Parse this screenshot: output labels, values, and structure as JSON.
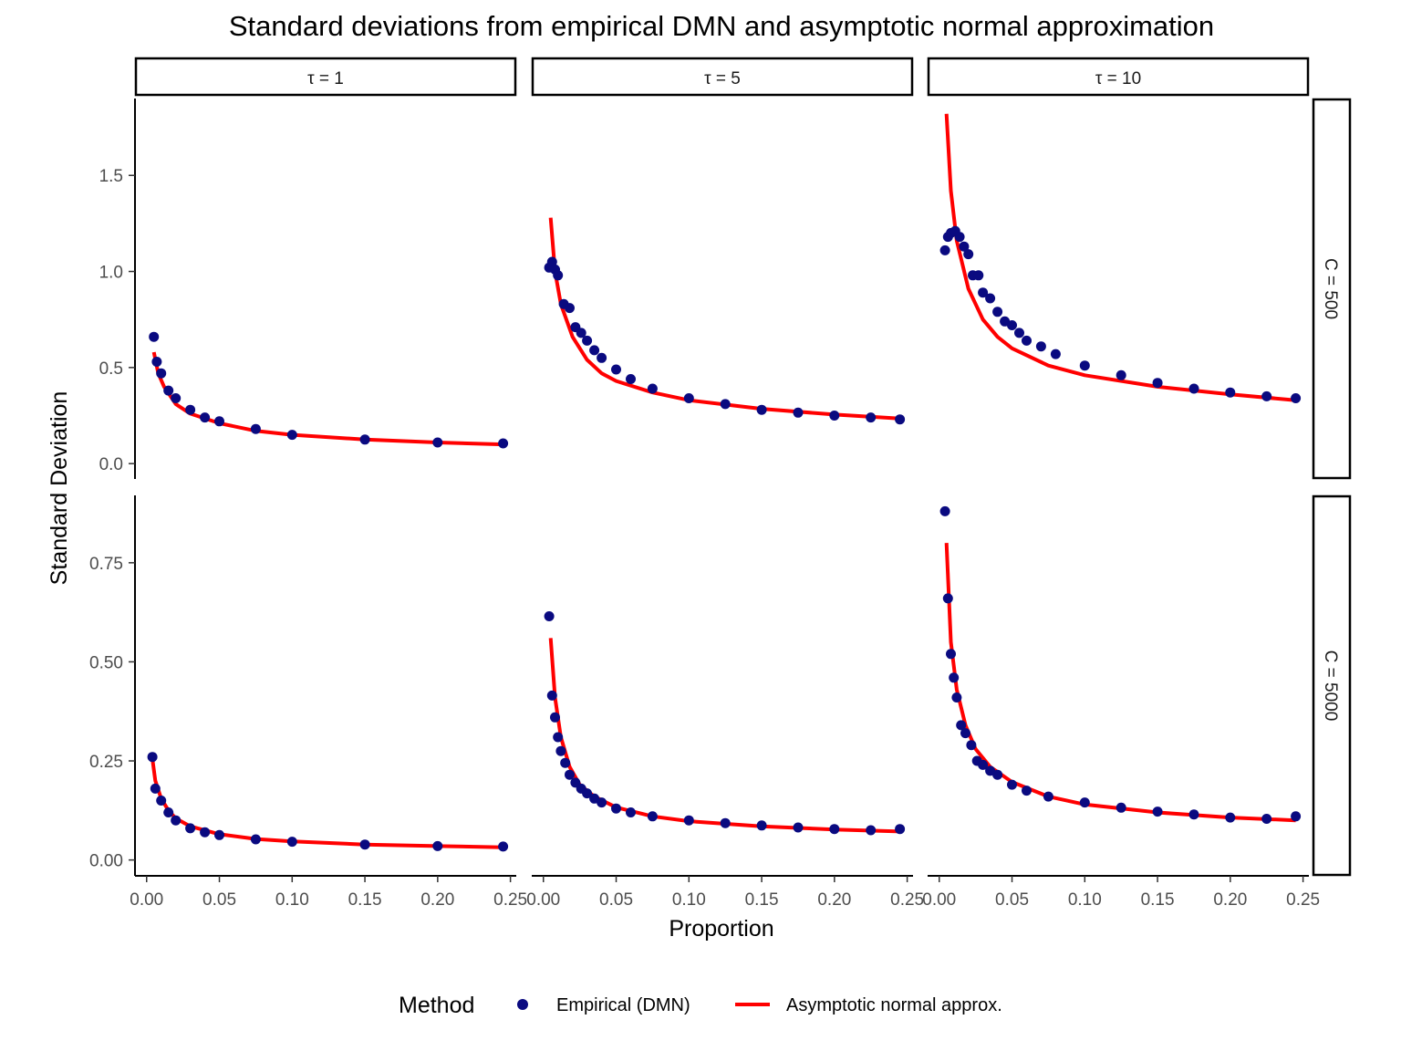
{
  "chart_data": {
    "type": "scatter",
    "title": "Standard deviations from empirical DMN and asymptotic normal approximation",
    "xlabel": "Proportion",
    "ylabel": "Standard Deviation",
    "columns": [
      "τ = 1",
      "τ = 5",
      "τ = 10"
    ],
    "rows": [
      "C = 500",
      "C = 5000"
    ],
    "xlim": [
      -0.008,
      0.254
    ],
    "x_ticks": [
      0.0,
      0.05,
      0.1,
      0.15,
      0.2,
      0.25
    ],
    "x_tick_labels": [
      "0.00",
      "0.05",
      "0.10",
      "0.15",
      "0.20",
      "0.25"
    ],
    "rows_axes": [
      {
        "ylim": [
          -0.08,
          1.9
        ],
        "ticks": [
          0.0,
          0.5,
          1.0,
          1.5
        ],
        "tick_labels": [
          "0.0",
          "0.5",
          "1.0",
          "1.5"
        ]
      },
      {
        "ylim": [
          -0.04,
          0.92
        ],
        "ticks": [
          0.0,
          0.25,
          0.5,
          0.75
        ],
        "tick_labels": [
          "0.00",
          "0.25",
          "0.50",
          "0.75"
        ]
      }
    ],
    "legend": {
      "title": "Method",
      "position": "bottom",
      "items": [
        {
          "label": "Empirical (DMN)",
          "kind": "point",
          "color": "#0a0a80"
        },
        {
          "label": "Asymptotic normal approx.",
          "kind": "line",
          "color": "#ff0000"
        }
      ]
    },
    "panels": [
      {
        "row": 0,
        "col": 0,
        "empirical": [
          [
            0.005,
            0.66
          ],
          [
            0.007,
            0.53
          ],
          [
            0.01,
            0.47
          ],
          [
            0.015,
            0.38
          ],
          [
            0.02,
            0.34
          ],
          [
            0.03,
            0.28
          ],
          [
            0.04,
            0.24
          ],
          [
            0.05,
            0.22
          ],
          [
            0.075,
            0.18
          ],
          [
            0.1,
            0.15
          ],
          [
            0.15,
            0.125
          ],
          [
            0.2,
            0.11
          ],
          [
            0.245,
            0.105
          ]
        ],
        "approx": [
          [
            0.005,
            0.58
          ],
          [
            0.008,
            0.47
          ],
          [
            0.012,
            0.4
          ],
          [
            0.02,
            0.31
          ],
          [
            0.03,
            0.26
          ],
          [
            0.05,
            0.21
          ],
          [
            0.075,
            0.17
          ],
          [
            0.1,
            0.15
          ],
          [
            0.15,
            0.125
          ],
          [
            0.2,
            0.11
          ],
          [
            0.245,
            0.1
          ]
        ]
      },
      {
        "row": 0,
        "col": 1,
        "empirical": [
          [
            0.004,
            1.02
          ],
          [
            0.006,
            1.05
          ],
          [
            0.008,
            1.01
          ],
          [
            0.01,
            0.98
          ],
          [
            0.014,
            0.83
          ],
          [
            0.018,
            0.81
          ],
          [
            0.022,
            0.71
          ],
          [
            0.026,
            0.68
          ],
          [
            0.03,
            0.64
          ],
          [
            0.035,
            0.59
          ],
          [
            0.04,
            0.55
          ],
          [
            0.05,
            0.49
          ],
          [
            0.06,
            0.44
          ],
          [
            0.075,
            0.39
          ],
          [
            0.1,
            0.34
          ],
          [
            0.125,
            0.31
          ],
          [
            0.15,
            0.28
          ],
          [
            0.175,
            0.265
          ],
          [
            0.2,
            0.25
          ],
          [
            0.225,
            0.24
          ],
          [
            0.245,
            0.23
          ]
        ],
        "approx": [
          [
            0.005,
            1.28
          ],
          [
            0.008,
            1.0
          ],
          [
            0.012,
            0.83
          ],
          [
            0.02,
            0.66
          ],
          [
            0.03,
            0.54
          ],
          [
            0.04,
            0.47
          ],
          [
            0.05,
            0.43
          ],
          [
            0.075,
            0.37
          ],
          [
            0.1,
            0.33
          ],
          [
            0.15,
            0.285
          ],
          [
            0.2,
            0.255
          ],
          [
            0.245,
            0.235
          ]
        ]
      },
      {
        "row": 0,
        "col": 2,
        "empirical": [
          [
            0.004,
            1.11
          ],
          [
            0.006,
            1.18
          ],
          [
            0.008,
            1.2
          ],
          [
            0.011,
            1.21
          ],
          [
            0.014,
            1.18
          ],
          [
            0.017,
            1.13
          ],
          [
            0.02,
            1.09
          ],
          [
            0.023,
            0.98
          ],
          [
            0.027,
            0.98
          ],
          [
            0.03,
            0.89
          ],
          [
            0.035,
            0.86
          ],
          [
            0.04,
            0.79
          ],
          [
            0.045,
            0.74
          ],
          [
            0.05,
            0.72
          ],
          [
            0.055,
            0.68
          ],
          [
            0.06,
            0.64
          ],
          [
            0.07,
            0.61
          ],
          [
            0.08,
            0.57
          ],
          [
            0.1,
            0.51
          ],
          [
            0.125,
            0.46
          ],
          [
            0.15,
            0.42
          ],
          [
            0.175,
            0.39
          ],
          [
            0.2,
            0.37
          ],
          [
            0.225,
            0.35
          ],
          [
            0.245,
            0.34
          ]
        ],
        "approx": [
          [
            0.005,
            1.82
          ],
          [
            0.008,
            1.42
          ],
          [
            0.012,
            1.16
          ],
          [
            0.02,
            0.91
          ],
          [
            0.03,
            0.75
          ],
          [
            0.04,
            0.66
          ],
          [
            0.05,
            0.6
          ],
          [
            0.075,
            0.51
          ],
          [
            0.1,
            0.46
          ],
          [
            0.15,
            0.4
          ],
          [
            0.2,
            0.36
          ],
          [
            0.245,
            0.33
          ]
        ]
      },
      {
        "row": 1,
        "col": 0,
        "empirical": [
          [
            0.004,
            0.26
          ],
          [
            0.006,
            0.18
          ],
          [
            0.01,
            0.15
          ],
          [
            0.015,
            0.12
          ],
          [
            0.02,
            0.1
          ],
          [
            0.03,
            0.08
          ],
          [
            0.04,
            0.07
          ],
          [
            0.05,
            0.063
          ],
          [
            0.075,
            0.052
          ],
          [
            0.1,
            0.046
          ],
          [
            0.15,
            0.039
          ],
          [
            0.2,
            0.035
          ],
          [
            0.245,
            0.034
          ]
        ],
        "approx": [
          [
            0.004,
            0.255
          ],
          [
            0.006,
            0.2
          ],
          [
            0.01,
            0.155
          ],
          [
            0.015,
            0.125
          ],
          [
            0.02,
            0.105
          ],
          [
            0.03,
            0.085
          ],
          [
            0.05,
            0.065
          ],
          [
            0.075,
            0.053
          ],
          [
            0.1,
            0.047
          ],
          [
            0.15,
            0.039
          ],
          [
            0.2,
            0.035
          ],
          [
            0.245,
            0.032
          ]
        ]
      },
      {
        "row": 1,
        "col": 2,
        "empirical": [
          [
            0.004,
            0.88
          ],
          [
            0.006,
            0.66
          ],
          [
            0.008,
            0.52
          ],
          [
            0.01,
            0.46
          ],
          [
            0.012,
            0.41
          ],
          [
            0.015,
            0.34
          ],
          [
            0.018,
            0.32
          ],
          [
            0.022,
            0.29
          ],
          [
            0.026,
            0.25
          ],
          [
            0.03,
            0.24
          ],
          [
            0.035,
            0.225
          ],
          [
            0.04,
            0.215
          ],
          [
            0.05,
            0.19
          ],
          [
            0.06,
            0.175
          ],
          [
            0.075,
            0.16
          ],
          [
            0.1,
            0.145
          ],
          [
            0.125,
            0.132
          ],
          [
            0.15,
            0.122
          ],
          [
            0.175,
            0.115
          ],
          [
            0.2,
            0.107
          ],
          [
            0.225,
            0.104
          ],
          [
            0.245,
            0.11
          ]
        ],
        "approx": [
          [
            0.005,
            0.8
          ],
          [
            0.008,
            0.55
          ],
          [
            0.012,
            0.43
          ],
          [
            0.018,
            0.34
          ],
          [
            0.025,
            0.28
          ],
          [
            0.035,
            0.235
          ],
          [
            0.05,
            0.197
          ],
          [
            0.075,
            0.16
          ],
          [
            0.1,
            0.14
          ],
          [
            0.15,
            0.12
          ],
          [
            0.2,
            0.107
          ],
          [
            0.245,
            0.1
          ]
        ]
      },
      {
        "row": 1,
        "col": 1,
        "empirical": [
          [
            0.004,
            0.615
          ],
          [
            0.006,
            0.415
          ],
          [
            0.008,
            0.36
          ],
          [
            0.01,
            0.31
          ],
          [
            0.012,
            0.275
          ],
          [
            0.015,
            0.245
          ],
          [
            0.018,
            0.215
          ],
          [
            0.022,
            0.195
          ],
          [
            0.026,
            0.18
          ],
          [
            0.03,
            0.168
          ],
          [
            0.035,
            0.155
          ],
          [
            0.04,
            0.145
          ],
          [
            0.05,
            0.13
          ],
          [
            0.06,
            0.12
          ],
          [
            0.075,
            0.11
          ],
          [
            0.1,
            0.1
          ],
          [
            0.125,
            0.093
          ],
          [
            0.15,
            0.087
          ],
          [
            0.175,
            0.082
          ],
          [
            0.2,
            0.078
          ],
          [
            0.225,
            0.075
          ],
          [
            0.245,
            0.078
          ]
        ],
        "approx": [
          [
            0.005,
            0.56
          ],
          [
            0.008,
            0.41
          ],
          [
            0.012,
            0.31
          ],
          [
            0.018,
            0.235
          ],
          [
            0.025,
            0.19
          ],
          [
            0.035,
            0.16
          ],
          [
            0.05,
            0.133
          ],
          [
            0.075,
            0.11
          ],
          [
            0.1,
            0.098
          ],
          [
            0.15,
            0.085
          ],
          [
            0.2,
            0.077
          ],
          [
            0.245,
            0.072
          ]
        ]
      }
    ]
  }
}
